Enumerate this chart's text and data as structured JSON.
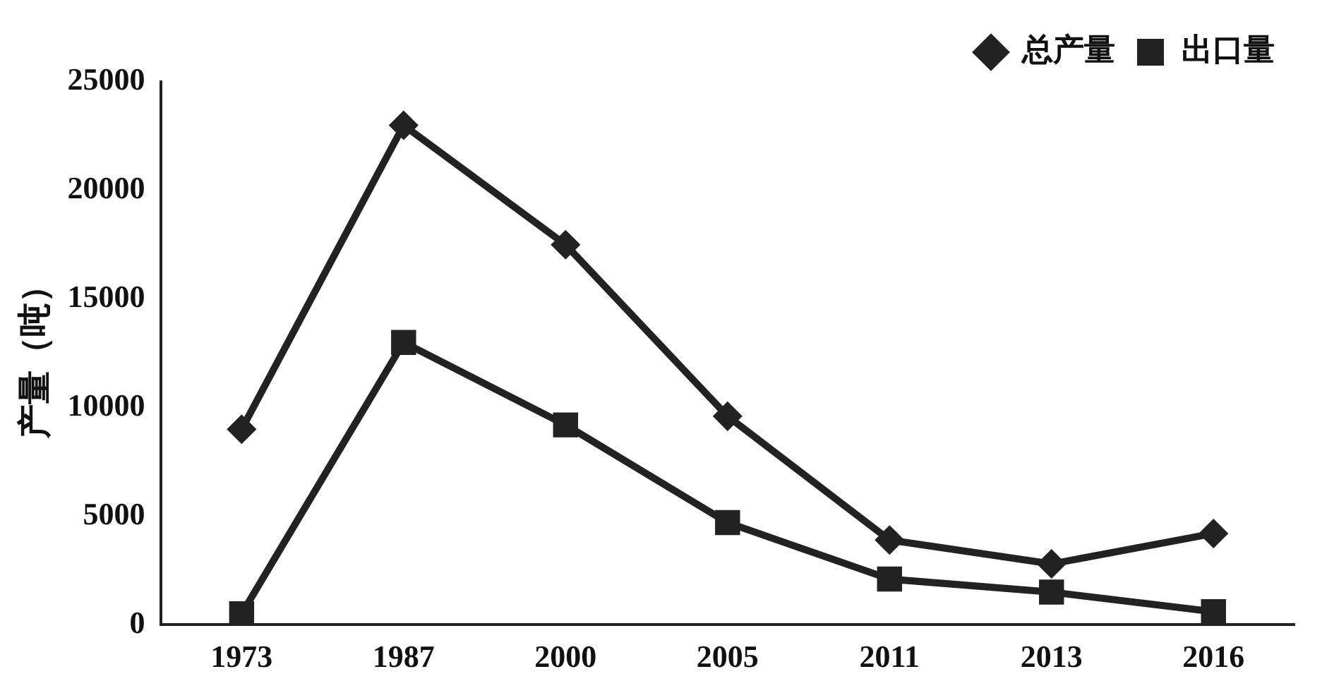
{
  "chart_data": {
    "type": "line",
    "ylabel": "产量（吨）",
    "categories": [
      "1973",
      "1987",
      "2000",
      "2005",
      "2011",
      "2013",
      "2016"
    ],
    "series": [
      {
        "name": "总产量",
        "color": "#222222",
        "marker": "diamond",
        "values": [
          9000,
          23000,
          17500,
          9600,
          3900,
          2800,
          4200
        ]
      },
      {
        "name": "出口量",
        "color": "#222222",
        "marker": "square",
        "values": [
          500,
          13000,
          9200,
          4700,
          2100,
          1500,
          600
        ]
      }
    ],
    "ylim": [
      0,
      25000
    ],
    "yticks": [
      0,
      5000,
      10000,
      15000,
      20000,
      25000
    ],
    "grid": false,
    "legend": "top right",
    "line_style": "solid"
  }
}
